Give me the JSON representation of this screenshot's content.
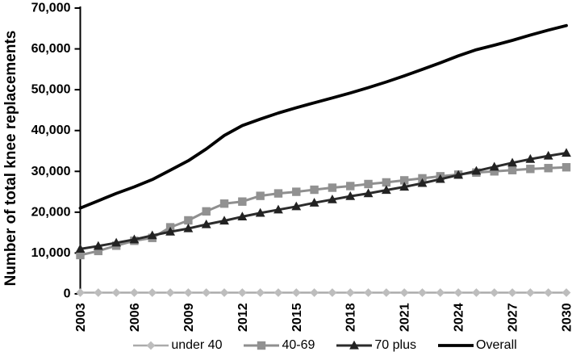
{
  "chart_data": {
    "type": "line",
    "title": "",
    "xlabel": "",
    "ylabel": "Number of total knee replacements",
    "grid": false,
    "legend_position": "bottom",
    "ylim": [
      0,
      70000
    ],
    "ytick_step": 10000,
    "ytick_labels": [
      "0",
      "10,000",
      "20,000",
      "30,000",
      "40,000",
      "50,000",
      "60,000",
      "70,000"
    ],
    "xtick_labels": [
      "2003",
      "2006",
      "2009",
      "2012",
      "2015",
      "2018",
      "2021",
      "2024",
      "2027",
      "2030"
    ],
    "x": [
      2003,
      2004,
      2005,
      2006,
      2007,
      2008,
      2009,
      2010,
      2011,
      2012,
      2013,
      2014,
      2015,
      2016,
      2017,
      2018,
      2019,
      2020,
      2021,
      2022,
      2023,
      2024,
      2025,
      2026,
      2027,
      2028,
      2029,
      2030
    ],
    "series": [
      {
        "name": "under 40",
        "marker": "diamond",
        "color": "#ababab",
        "marker_color": "#bdbdbd",
        "line_width": 2.5,
        "values": [
          300,
          300,
          300,
          300,
          300,
          300,
          300,
          300,
          300,
          300,
          300,
          300,
          300,
          300,
          300,
          300,
          300,
          300,
          300,
          300,
          300,
          300,
          300,
          300,
          300,
          300,
          300,
          300
        ]
      },
      {
        "name": "40-69",
        "marker": "square",
        "color": "#8f8f8f",
        "marker_color": "#919191",
        "line_width": 3,
        "values": [
          9500,
          10500,
          11800,
          13000,
          13700,
          16300,
          18000,
          20200,
          22100,
          22600,
          24000,
          24600,
          25000,
          25500,
          26000,
          26400,
          26900,
          27300,
          27800,
          28300,
          28800,
          29200,
          29700,
          30000,
          30300,
          30600,
          30800,
          31000
        ]
      },
      {
        "name": "70 plus",
        "marker": "triangle",
        "color": "#2b2b2b",
        "marker_color": "#222222",
        "line_width": 3,
        "values": [
          11000,
          11700,
          12500,
          13300,
          14300,
          15200,
          16000,
          17000,
          17900,
          18900,
          19800,
          20600,
          21400,
          22300,
          23100,
          23900,
          24600,
          25400,
          26200,
          27100,
          28100,
          29100,
          30100,
          31100,
          32100,
          33000,
          33800,
          34500
        ]
      },
      {
        "name": "Overall",
        "marker": "none",
        "color": "#000000",
        "line_width": 3.8,
        "values": [
          21000,
          22800,
          24600,
          26200,
          28000,
          30300,
          32600,
          35500,
          38800,
          41200,
          42800,
          44300,
          45600,
          46800,
          48000,
          49200,
          50500,
          51900,
          53400,
          55000,
          56600,
          58300,
          59800,
          60900,
          62100,
          63400,
          64600,
          65700
        ]
      }
    ]
  }
}
